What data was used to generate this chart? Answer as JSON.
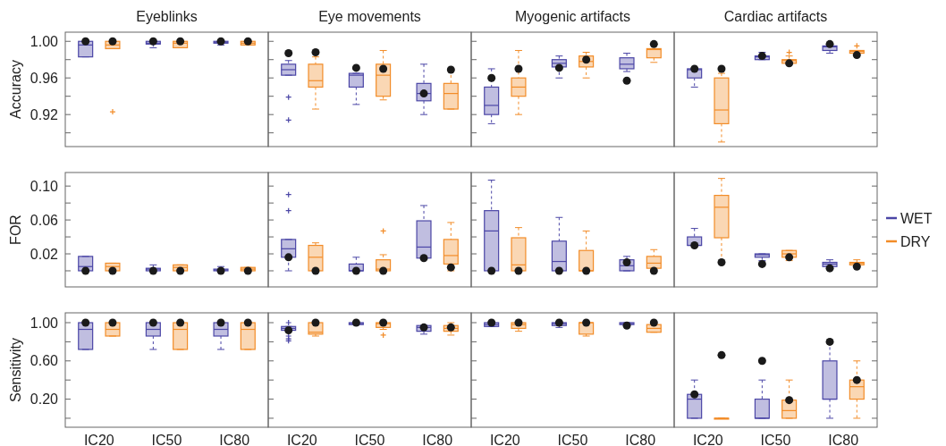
{
  "chart_data": [
    {
      "type": "box",
      "title": "Eyeblinks",
      "ylabel": "Accuracy",
      "categories": [
        "IC20",
        "IC50",
        "IC80"
      ],
      "ylim": [
        0.885,
        1.01
      ],
      "yticks": [
        {
          "value": 0.9,
          "label": null
        },
        0.92,
        {
          "value": 0.94,
          "label": null
        },
        0.96,
        {
          "value": 0.98,
          "label": null
        },
        {
          "value": 1,
          "label": "1.00"
        }
      ],
      "tick_labels": "y",
      "series": [
        {
          "color": "#4b46a6",
          "boxes": [
            {
              "low": 0.983,
              "q1": 0.983,
              "median": 0.996,
              "q3": 1.0,
              "high": 1.0
            },
            {
              "low": 0.993,
              "q1": 0.997,
              "median": 0.998,
              "q3": 1.0,
              "high": 1.0
            },
            {
              "low": 0.996,
              "q1": 0.998,
              "median": 0.999,
              "q3": 1.0,
              "high": 1.0
            }
          ]
        },
        {
          "color": "#f28c28",
          "boxes": [
            {
              "low": 0.992,
              "q1": 0.992,
              "median": 0.996,
              "q3": 1.0,
              "high": 1.0,
              "outliers": [
                0.923
              ]
            },
            {
              "low": 0.993,
              "q1": 0.993,
              "median": 0.998,
              "q3": 1.0,
              "high": 1.0
            },
            {
              "low": 0.996,
              "q1": 0.996,
              "median": 0.998,
              "q3": 1.0,
              "high": 1.0
            }
          ]
        },
        {
          "type": "scatter",
          "color": "#1a1a1a",
          "x": [
            "IC20",
            "IC50",
            "IC80"
          ],
          "values": [
            1.0,
            1.0,
            1.0
          ]
        },
        {
          "type": "scatter",
          "color": "#1a1a1a",
          "x": [
            "IC20",
            "IC50",
            "IC80"
          ],
          "values": [
            1.0,
            1.0,
            1.0
          ]
        }
      ]
    },
    {
      "type": "box",
      "title": "Eye movements",
      "categories": [
        "IC20",
        "IC50",
        "IC80"
      ],
      "ylim": [
        0.885,
        1.01
      ],
      "yticks": [
        0.9,
        0.92,
        0.94,
        0.96,
        0.98,
        1
      ],
      "tick_labels": false,
      "series": [
        {
          "color": "#4b46a6",
          "boxes": [
            {
              "low": 0.963,
              "q1": 0.963,
              "median": 0.969,
              "q3": 0.975,
              "high": 0.979,
              "outliers": [
                0.939,
                0.914
              ]
            },
            {
              "low": 0.931,
              "q1": 0.95,
              "median": 0.963,
              "q3": 0.965,
              "high": 0.965
            },
            {
              "low": 0.92,
              "q1": 0.935,
              "median": 0.943,
              "q3": 0.954,
              "high": 0.975
            }
          ]
        },
        {
          "color": "#f28c28",
          "boxes": [
            {
              "low": 0.926,
              "q1": 0.95,
              "median": 0.957,
              "q3": 0.975,
              "high": 0.983
            },
            {
              "low": 0.936,
              "q1": 0.94,
              "median": 0.963,
              "q3": 0.975,
              "high": 0.99
            },
            {
              "low": 0.926,
              "q1": 0.926,
              "median": 0.943,
              "q3": 0.954,
              "high": 0.969
            }
          ]
        },
        {
          "type": "scatter",
          "color": "#1a1a1a",
          "x": [
            "IC20",
            "IC50",
            "IC80"
          ],
          "values": [
            0.987,
            0.971,
            0.943
          ]
        },
        {
          "type": "scatter",
          "color": "#1a1a1a",
          "x": [
            "IC20",
            "IC50",
            "IC80"
          ],
          "values": [
            0.988,
            0.97,
            0.969
          ]
        }
      ]
    },
    {
      "type": "box",
      "title": "Myogenic artifacts",
      "categories": [
        "IC20",
        "IC50",
        "IC80"
      ],
      "ylim": [
        0.885,
        1.01
      ],
      "yticks": [
        0.9,
        0.92,
        0.94,
        0.96,
        0.98,
        1
      ],
      "tick_labels": false,
      "series": [
        {
          "color": "#4b46a6",
          "boxes": [
            {
              "low": 0.91,
              "q1": 0.92,
              "median": 0.93,
              "q3": 0.95,
              "high": 0.97
            },
            {
              "low": 0.96,
              "q1": 0.972,
              "median": 0.976,
              "q3": 0.98,
              "high": 0.984
            },
            {
              "low": 0.967,
              "q1": 0.97,
              "median": 0.975,
              "q3": 0.982,
              "high": 0.987
            }
          ]
        },
        {
          "color": "#f28c28",
          "boxes": [
            {
              "low": 0.92,
              "q1": 0.94,
              "median": 0.95,
              "q3": 0.96,
              "high": 0.99
            },
            {
              "low": 0.96,
              "q1": 0.972,
              "median": 0.978,
              "q3": 0.984,
              "high": 0.988
            },
            {
              "low": 0.977,
              "q1": 0.982,
              "median": 0.991,
              "q3": 0.992,
              "high": 0.997
            }
          ]
        },
        {
          "type": "scatter",
          "color": "#1a1a1a",
          "x": [
            "IC20",
            "IC50",
            "IC80"
          ],
          "values": [
            0.96,
            0.971,
            0.957
          ]
        },
        {
          "type": "scatter",
          "color": "#1a1a1a",
          "x": [
            "IC20",
            "IC50",
            "IC80"
          ],
          "values": [
            0.97,
            0.98,
            0.997
          ]
        }
      ]
    },
    {
      "type": "box",
      "title": "Cardiac artifacts",
      "categories": [
        "IC20",
        "IC50",
        "IC80"
      ],
      "ylim": [
        0.885,
        1.01
      ],
      "yticks": [
        0.9,
        0.92,
        0.94,
        0.96,
        0.98,
        1
      ],
      "tick_labels": false,
      "series": [
        {
          "color": "#4b46a6",
          "boxes": [
            {
              "low": 0.95,
              "q1": 0.96,
              "median": 0.969,
              "q3": 0.97,
              "high": 0.97
            },
            {
              "low": 0.98,
              "q1": 0.98,
              "median": 0.983,
              "q3": 0.984,
              "high": 0.988
            },
            {
              "low": 0.987,
              "q1": 0.99,
              "median": 0.994,
              "q3": 0.995,
              "high": 0.995
            }
          ]
        },
        {
          "color": "#f28c28",
          "boxes": [
            {
              "low": 0.89,
              "q1": 0.91,
              "median": 0.925,
              "q3": 0.96,
              "high": 0.965
            },
            {
              "low": 0.976,
              "q1": 0.976,
              "median": 0.979,
              "q3": 0.98,
              "high": 0.984,
              "outliers": [
                0.988
              ]
            },
            {
              "low": 0.987,
              "q1": 0.987,
              "median": 0.989,
              "q3": 0.99,
              "high": 0.99,
              "outliers": [
                0.995
              ]
            }
          ]
        },
        {
          "type": "scatter",
          "color": "#1a1a1a",
          "x": [
            "IC20",
            "IC50",
            "IC80"
          ],
          "values": [
            0.97,
            0.984,
            0.997
          ]
        },
        {
          "type": "scatter",
          "color": "#1a1a1a",
          "x": [
            "IC20",
            "IC50",
            "IC80"
          ],
          "values": [
            0.97,
            0.976,
            0.985
          ]
        }
      ]
    },
    {
      "type": "box",
      "ylabel": "FOR",
      "categories": [
        "IC20",
        "IC50",
        "IC80"
      ],
      "ylim": [
        -0.019,
        0.116
      ],
      "yticks": [
        {
          "value": 0,
          "label": null
        },
        0.02,
        {
          "value": 0.04,
          "label": null
        },
        0.06,
        {
          "value": 0.08,
          "label": null
        },
        {
          "value": 0.1,
          "label": "0.10"
        }
      ],
      "tick_labels": "y",
      "series": [
        {
          "color": "#4b46a6",
          "boxes": [
            {
              "low": 0,
              "q1": 0,
              "median": 0.005,
              "q3": 0.017,
              "high": 0.017
            },
            {
              "low": 0,
              "q1": 0,
              "median": 0.002,
              "q3": 0.003,
              "high": 0.007
            },
            {
              "low": 0,
              "q1": 0,
              "median": 0.001,
              "q3": 0.002,
              "high": 0.005
            }
          ]
        },
        {
          "color": "#f28c28",
          "boxes": [
            {
              "low": 0,
              "q1": 0,
              "median": 0.005,
              "q3": 0.009,
              "high": 0.009
            },
            {
              "low": 0,
              "q1": 0,
              "median": 0.004,
              "q3": 0.007,
              "high": 0.007
            },
            {
              "low": 0,
              "q1": 0,
              "median": 0.002,
              "q3": 0.004,
              "high": 0.004
            }
          ]
        },
        {
          "type": "scatter",
          "color": "#1a1a1a",
          "x": [
            "IC20",
            "IC50",
            "IC80"
          ],
          "values": [
            0,
            0,
            0
          ]
        },
        {
          "type": "scatter",
          "color": "#1a1a1a",
          "x": [
            "IC20",
            "IC50",
            "IC80"
          ],
          "values": [
            0,
            0,
            0
          ]
        }
      ]
    },
    {
      "type": "box",
      "categories": [
        "IC20",
        "IC50",
        "IC80"
      ],
      "ylim": [
        -0.019,
        0.116
      ],
      "yticks": [
        0,
        0.02,
        0.04,
        0.06,
        0.08,
        0.1
      ],
      "tick_labels": false,
      "series": [
        {
          "color": "#4b46a6",
          "boxes": [
            {
              "low": 0,
              "q1": 0.016,
              "median": 0.026,
              "q3": 0.037,
              "high": 0.037,
              "outliers": [
                0.09,
                0.071
              ]
            },
            {
              "low": 0,
              "q1": 0,
              "median": 0,
              "q3": 0.008,
              "high": 0.016
            },
            {
              "low": 0.015,
              "q1": 0.015,
              "median": 0.028,
              "q3": 0.059,
              "high": 0.077
            }
          ]
        },
        {
          "color": "#f28c28",
          "boxes": [
            {
              "low": 0,
              "q1": 0,
              "median": 0.016,
              "q3": 0.03,
              "high": 0.033
            },
            {
              "low": 0,
              "q1": 0,
              "median": 0.002,
              "q3": 0.013,
              "high": 0.019,
              "outliers": [
                0.047
              ]
            },
            {
              "low": 0,
              "q1": 0.008,
              "median": 0.018,
              "q3": 0.037,
              "high": 0.057
            }
          ]
        },
        {
          "type": "scatter",
          "color": "#1a1a1a",
          "x": [
            "IC20",
            "IC50",
            "IC80"
          ],
          "values": [
            0.016,
            0,
            0.015
          ]
        },
        {
          "type": "scatter",
          "color": "#1a1a1a",
          "x": [
            "IC20",
            "IC50",
            "IC80"
          ],
          "values": [
            0,
            0,
            0.004
          ]
        }
      ]
    },
    {
      "type": "box",
      "categories": [
        "IC20",
        "IC50",
        "IC80"
      ],
      "ylim": [
        -0.019,
        0.116
      ],
      "yticks": [
        0,
        0.02,
        0.04,
        0.06,
        0.08,
        0.1
      ],
      "tick_labels": false,
      "series": [
        {
          "color": "#4b46a6",
          "boxes": [
            {
              "low": 0,
              "q1": 0,
              "median": 0.047,
              "q3": 0.071,
              "high": 0.107
            },
            {
              "low": 0,
              "q1": 0,
              "median": 0.011,
              "q3": 0.035,
              "high": 0.063
            },
            {
              "low": 0,
              "q1": 0,
              "median": 0.006,
              "q3": 0.013,
              "high": 0.017
            }
          ]
        },
        {
          "color": "#f28c28",
          "boxes": [
            {
              "low": 0,
              "q1": 0,
              "median": 0.007,
              "q3": 0.039,
              "high": 0.051
            },
            {
              "low": 0,
              "q1": 0,
              "median": 0,
              "q3": 0.024,
              "high": 0.047
            },
            {
              "low": 0.003,
              "q1": 0.003,
              "median": 0.009,
              "q3": 0.017,
              "high": 0.025
            }
          ]
        },
        {
          "type": "scatter",
          "color": "#1a1a1a",
          "x": [
            "IC20",
            "IC50",
            "IC80"
          ],
          "values": [
            0,
            0,
            0.01
          ]
        },
        {
          "type": "scatter",
          "color": "#1a1a1a",
          "x": [
            "IC20",
            "IC50",
            "IC80"
          ],
          "values": [
            0,
            0,
            0
          ]
        }
      ]
    },
    {
      "type": "box",
      "categories": [
        "IC20",
        "IC50",
        "IC80"
      ],
      "ylim": [
        -0.019,
        0.116
      ],
      "yticks": [
        0,
        0.02,
        0.04,
        0.06,
        0.08,
        0.1
      ],
      "tick_labels": false,
      "legend": "right",
      "series": [
        {
          "name": "WET",
          "color": "#4b46a6",
          "boxes": [
            {
              "low": 0.03,
              "q1": 0.03,
              "median": 0.03,
              "q3": 0.04,
              "high": 0.05
            },
            {
              "low": 0.012,
              "q1": 0.016,
              "median": 0.019,
              "q3": 0.02,
              "high": 0.02
            },
            {
              "low": 0.005,
              "q1": 0.005,
              "median": 0.008,
              "q3": 0.01,
              "high": 0.013
            }
          ]
        },
        {
          "name": "DRY",
          "color": "#f28c28",
          "boxes": [
            {
              "low": 0.01,
              "q1": 0.039,
              "median": 0.075,
              "q3": 0.089,
              "high": 0.109
            },
            {
              "low": 0.012,
              "q1": 0.016,
              "median": 0.02,
              "q3": 0.024,
              "high": 0.024
            },
            {
              "low": 0.007,
              "q1": 0.007,
              "median": 0.009,
              "q3": 0.01,
              "high": 0.013
            }
          ]
        },
        {
          "type": "scatter",
          "color": "#1a1a1a",
          "x": [
            "IC20",
            "IC50",
            "IC80"
          ],
          "values": [
            0.03,
            0.008,
            0.003
          ]
        },
        {
          "type": "scatter",
          "color": "#1a1a1a",
          "x": [
            "IC20",
            "IC50",
            "IC80"
          ],
          "values": [
            0.01,
            0.016,
            0.005
          ]
        }
      ]
    },
    {
      "type": "box",
      "ylabel": "Sensitivity",
      "categories": [
        "IC20",
        "IC50",
        "IC80"
      ],
      "ylim": [
        -0.094,
        1.103
      ],
      "yticks": [
        {
          "value": 0,
          "label": null
        },
        {
          "value": 0.2,
          "label": "0.20"
        },
        {
          "value": 0.4,
          "label": null
        },
        {
          "value": 0.6,
          "label": "0.60"
        },
        {
          "value": 0.8,
          "label": null
        },
        {
          "value": 1,
          "label": "1.00"
        }
      ],
      "series": [
        {
          "color": "#4b46a6",
          "boxes": [
            {
              "low": 0.72,
              "q1": 0.72,
              "median": 0.93,
              "q3": 1,
              "high": 1
            },
            {
              "low": 0.72,
              "q1": 0.86,
              "median": 0.93,
              "q3": 1,
              "high": 1
            },
            {
              "low": 0.72,
              "q1": 0.86,
              "median": 0.93,
              "q3": 1,
              "high": 1
            }
          ]
        },
        {
          "color": "#f28c28",
          "boxes": [
            {
              "low": 0.86,
              "q1": 0.86,
              "median": 0.93,
              "q3": 1,
              "high": 1
            },
            {
              "low": 0.72,
              "q1": 0.72,
              "median": 0.93,
              "q3": 1,
              "high": 1
            },
            {
              "low": 0.72,
              "q1": 0.72,
              "median": 0.93,
              "q3": 1,
              "high": 1
            }
          ]
        },
        {
          "type": "scatter",
          "color": "#1a1a1a",
          "x": [
            "IC20",
            "IC50",
            "IC80"
          ],
          "values": [
            1,
            1,
            1
          ]
        },
        {
          "type": "scatter",
          "color": "#1a1a1a",
          "x": [
            "IC20",
            "IC50",
            "IC80"
          ],
          "values": [
            1,
            1,
            1
          ]
        }
      ]
    },
    {
      "type": "box",
      "categories": [
        "IC20",
        "IC50",
        "IC80"
      ],
      "ylim": [
        -0.094,
        1.103
      ],
      "yticks": [
        0,
        0.2,
        0.4,
        0.6,
        0.8,
        1
      ],
      "tick_labels": "x",
      "series": [
        {
          "color": "#4b46a6",
          "boxes": [
            {
              "low": 0.92,
              "q1": 0.92,
              "median": 0.94,
              "q3": 0.96,
              "high": 0.96,
              "outliers": [
                1.0,
                0.86,
                0.83,
                0.81
              ]
            },
            {
              "low": 0.98,
              "q1": 0.98,
              "median": 0.99,
              "q3": 1,
              "high": 1
            },
            {
              "low": 0.88,
              "q1": 0.91,
              "median": 0.95,
              "q3": 0.97,
              "high": 0.97
            }
          ]
        },
        {
          "color": "#f28c28",
          "boxes": [
            {
              "low": 0.86,
              "q1": 0.88,
              "median": 0.9,
              "q3": 1,
              "high": 1
            },
            {
              "low": 0.93,
              "q1": 0.95,
              "median": 0.99,
              "q3": 1,
              "high": 1,
              "outliers": [
                0.87
              ]
            },
            {
              "low": 0.87,
              "q1": 0.91,
              "median": 0.94,
              "q3": 0.97,
              "high": 1
            }
          ]
        },
        {
          "type": "scatter",
          "color": "#1a1a1a",
          "x": [
            "IC20",
            "IC50",
            "IC80"
          ],
          "values": [
            0.92,
            1,
            0.95
          ]
        },
        {
          "type": "scatter",
          "color": "#1a1a1a",
          "x": [
            "IC20",
            "IC50",
            "IC80"
          ],
          "values": [
            1,
            1,
            0.95
          ]
        }
      ]
    },
    {
      "type": "box",
      "categories": [
        "IC20",
        "IC50",
        "IC80"
      ],
      "ylim": [
        -0.094,
        1.103
      ],
      "yticks": [
        0,
        0.2,
        0.4,
        0.6,
        0.8,
        1
      ],
      "tick_labels": "x",
      "series": [
        {
          "color": "#4b46a6",
          "boxes": [
            {
              "low": 0.96,
              "q1": 0.96,
              "median": 0.98,
              "q3": 1,
              "high": 1
            },
            {
              "low": 0.95,
              "q1": 0.97,
              "median": 0.99,
              "q3": 1,
              "high": 1
            },
            {
              "low": 0.98,
              "q1": 0.98,
              "median": 0.99,
              "q3": 1,
              "high": 1
            }
          ]
        },
        {
          "color": "#f28c28",
          "boxes": [
            {
              "low": 0.91,
              "q1": 0.94,
              "median": 0.98,
              "q3": 1,
              "high": 1
            },
            {
              "low": 0.86,
              "q1": 0.88,
              "median": 1,
              "q3": 1,
              "high": 1
            },
            {
              "low": 0.9,
              "q1": 0.9,
              "median": 0.94,
              "q3": 0.98,
              "high": 1
            }
          ]
        },
        {
          "type": "scatter",
          "color": "#1a1a1a",
          "x": [
            "IC20",
            "IC50",
            "IC80"
          ],
          "values": [
            1,
            1,
            0.97
          ]
        },
        {
          "type": "scatter",
          "color": "#1a1a1a",
          "x": [
            "IC20",
            "IC50",
            "IC80"
          ],
          "values": [
            1,
            1,
            1
          ]
        }
      ]
    },
    {
      "type": "box",
      "categories": [
        "IC20",
        "IC50",
        "IC80"
      ],
      "ylim": [
        -0.094,
        1.103
      ],
      "yticks": [
        0,
        0.2,
        0.4,
        0.6,
        0.8,
        1
      ],
      "tick_labels": "x",
      "series": [
        {
          "color": "#4b46a6",
          "boxes": [
            {
              "low": 0,
              "q1": 0,
              "median": 0.2,
              "q3": 0.25,
              "high": 0.4
            },
            {
              "low": 0,
              "q1": 0,
              "median": 0,
              "q3": 0.2,
              "high": 0.4
            },
            {
              "low": 0,
              "q1": 0.2,
              "median": 0.2,
              "q3": 0.6,
              "high": 0.8
            }
          ]
        },
        {
          "color": "#f28c28",
          "boxes": [
            {
              "low": 0,
              "q1": 0,
              "median": 0,
              "q3": 0,
              "high": 0
            },
            {
              "low": 0,
              "q1": 0,
              "median": 0.08,
              "q3": 0.19,
              "high": 0.4
            },
            {
              "low": 0,
              "q1": 0.2,
              "median": 0.33,
              "q3": 0.4,
              "high": 0.6
            }
          ]
        },
        {
          "type": "scatter",
          "color": "#1a1a1a",
          "x": [
            "IC20",
            "IC50",
            "IC80"
          ],
          "values": [
            0.25,
            0.6,
            0.8
          ]
        },
        {
          "type": "scatter",
          "color": "#1a1a1a",
          "x": [
            "IC20",
            "IC50",
            "IC80"
          ],
          "values": [
            0.66,
            0.19,
            0.4
          ]
        }
      ]
    }
  ]
}
